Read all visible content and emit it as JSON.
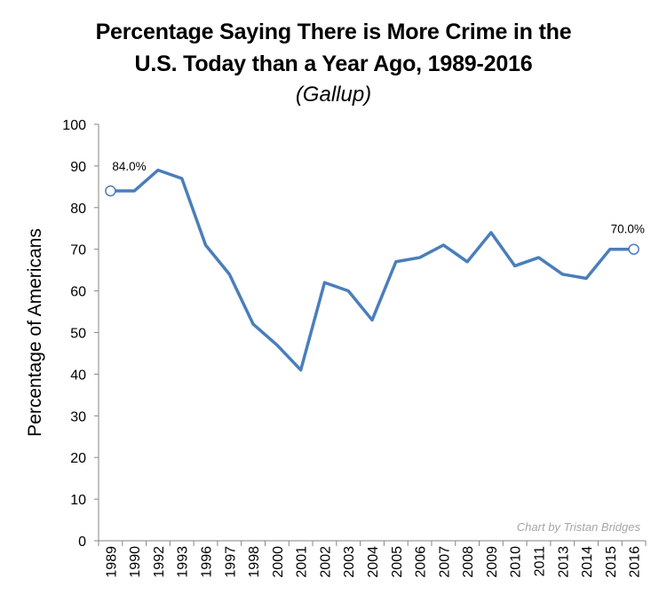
{
  "chart_data": {
    "type": "line",
    "title_line1": "Percentage Saying There is More Crime in the",
    "title_line2": "U.S. Today than a Year Ago, 1989-2016",
    "subtitle": "(Gallup)",
    "xlabel": "",
    "ylabel": "Percentage of Americans",
    "ylim": [
      0,
      100
    ],
    "yticks": [
      0,
      10,
      20,
      30,
      40,
      50,
      60,
      70,
      80,
      90,
      100
    ],
    "categories": [
      "1989",
      "1990",
      "1992",
      "1993",
      "1996",
      "1997",
      "1998",
      "2000",
      "2001",
      "2002",
      "2003",
      "2004",
      "2005",
      "2006",
      "2007",
      "2008",
      "2009",
      "2010",
      "2011",
      "2013",
      "2014",
      "2015",
      "2016"
    ],
    "series": [
      {
        "name": "Percentage saying more crime",
        "color": "#4a7ebb",
        "values": [
          84,
          84,
          89,
          87,
          71,
          64,
          52,
          47,
          41,
          62,
          60,
          53,
          67,
          68,
          71,
          67,
          74,
          66,
          68,
          64,
          63,
          70,
          70
        ]
      }
    ],
    "annotations": [
      {
        "index": 0,
        "text": "84.0%"
      },
      {
        "index": 22,
        "text": "70.0%"
      }
    ],
    "credit": "Chart by Tristan Bridges",
    "grid": false
  }
}
